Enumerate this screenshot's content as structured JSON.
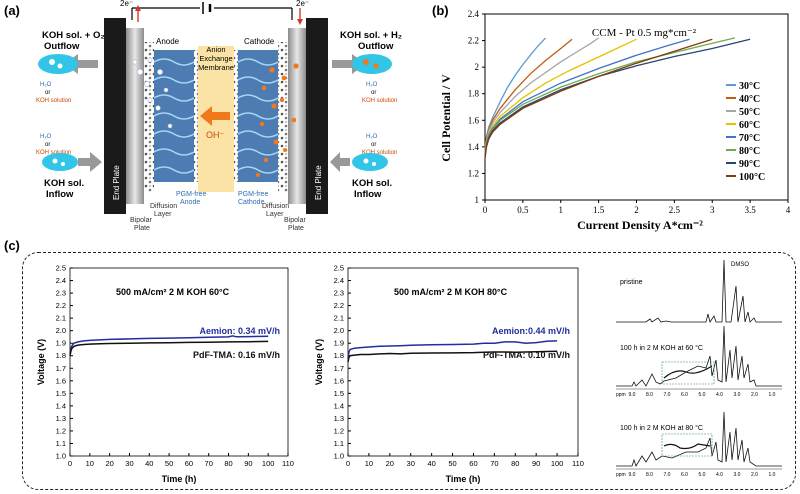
{
  "panel_a": {
    "label": "(a)",
    "electron_left": "2e⁻",
    "electron_right": "2e⁻",
    "left_outflow_title": "KOH sol. + O₂",
    "left_outflow_sub": "Outflow",
    "right_outflow_title": "KOH sol. + H₂",
    "right_outflow_sub": "Outflow",
    "water_label": "H₂O",
    "or_label": "or",
    "koh_solution_label": "KOH solution",
    "left_inflow_title": "KOH sol.",
    "left_inflow_sub": "Inflow",
    "right_inflow_title": "KOH sol.",
    "right_inflow_sub": "Inflow",
    "anode_label": "Anode",
    "cathode_label": "Cathode",
    "membrane_line1": "Anion",
    "membrane_line2": "Exchange",
    "membrane_line3": "Membrane",
    "hydroxide_label": "OH⁻",
    "end_plate": "End Plate",
    "bipolar_plate": [
      "Bipolar",
      "Plate"
    ],
    "diffusion_layer": [
      "Diffusion",
      "Layer"
    ],
    "pgm_anode": [
      "PGM-free",
      "Anode"
    ],
    "pgm_cathode": [
      "PGM-free",
      "Cathode"
    ],
    "colors": {
      "cyan": "#31c6e8",
      "orange": "#f07a1a",
      "membrane": "#fbe3a6",
      "electrode": "#4d7cb3"
    }
  },
  "panel_b": {
    "label": "(b)",
    "chart_data": {
      "type": "line",
      "title": "CCM - Pt 0.5 mg*cm⁻²",
      "xlabel": "Current Density A*cm⁻²",
      "ylabel": "Cell Potential / V",
      "xlim": [
        0,
        4
      ],
      "ylim": [
        1,
        2.4
      ],
      "xticks": [
        "0",
        "0.5",
        "1",
        "1.5",
        "2",
        "2.5",
        "3",
        "3.5",
        "4"
      ],
      "yticks": [
        "1",
        "1.2",
        "1.4",
        "1.6",
        "1.8",
        "2",
        "2.2",
        "2.4"
      ],
      "legend_position": "right",
      "series": [
        {
          "name": "30°C",
          "color": "#5b9bd5",
          "x": [
            0,
            0.02,
            0.05,
            0.1,
            0.2,
            0.3,
            0.4,
            0.5,
            0.6,
            0.7,
            0.8
          ],
          "y": [
            1.38,
            1.48,
            1.55,
            1.62,
            1.74,
            1.85,
            1.94,
            2.02,
            2.09,
            2.16,
            2.22
          ]
        },
        {
          "name": "40°C",
          "color": "#c55a11",
          "x": [
            0,
            0.02,
            0.05,
            0.1,
            0.2,
            0.4,
            0.6,
            0.8,
            1.0,
            1.15
          ],
          "y": [
            1.37,
            1.47,
            1.53,
            1.6,
            1.69,
            1.83,
            1.95,
            2.05,
            2.14,
            2.21
          ]
        },
        {
          "name": "50°C",
          "color": "#a5a5a5",
          "x": [
            0,
            0.02,
            0.05,
            0.1,
            0.2,
            0.4,
            0.6,
            0.8,
            1.0,
            1.2,
            1.4,
            1.5
          ],
          "y": [
            1.36,
            1.45,
            1.52,
            1.58,
            1.66,
            1.78,
            1.88,
            1.96,
            2.04,
            2.11,
            2.18,
            2.22
          ]
        },
        {
          "name": "60°C",
          "color": "#e7c000",
          "x": [
            0,
            0.02,
            0.05,
            0.1,
            0.2,
            0.5,
            0.8,
            1.1,
            1.4,
            1.7,
            2.0
          ],
          "y": [
            1.35,
            1.44,
            1.5,
            1.56,
            1.63,
            1.77,
            1.88,
            1.97,
            2.05,
            2.13,
            2.21
          ]
        },
        {
          "name": "70°C",
          "color": "#4472c4",
          "x": [
            0,
            0.02,
            0.05,
            0.1,
            0.2,
            0.5,
            1.0,
            1.5,
            2.0,
            2.4,
            2.7
          ],
          "y": [
            1.34,
            1.43,
            1.49,
            1.54,
            1.61,
            1.74,
            1.88,
            1.99,
            2.09,
            2.16,
            2.21
          ]
        },
        {
          "name": "80°C",
          "color": "#70ad47",
          "x": [
            0,
            0.02,
            0.05,
            0.1,
            0.2,
            0.5,
            1.0,
            1.5,
            2.0,
            2.5,
            3.0,
            3.3
          ],
          "y": [
            1.33,
            1.42,
            1.48,
            1.53,
            1.6,
            1.72,
            1.85,
            1.95,
            2.04,
            2.11,
            2.18,
            2.22
          ]
        },
        {
          "name": "90°C",
          "color": "#264478",
          "x": [
            0,
            0.02,
            0.05,
            0.1,
            0.2,
            0.5,
            1.0,
            1.5,
            2.0,
            2.5,
            3.0,
            3.5
          ],
          "y": [
            1.32,
            1.41,
            1.47,
            1.52,
            1.58,
            1.7,
            1.83,
            1.93,
            2.01,
            2.08,
            2.14,
            2.21
          ]
        },
        {
          "name": "100°C",
          "color": "#843c0c",
          "x": [
            0,
            0.02,
            0.05,
            0.1,
            0.2,
            0.5,
            1.0,
            1.5,
            2.0,
            2.5,
            3.0
          ],
          "y": [
            1.31,
            1.4,
            1.46,
            1.51,
            1.57,
            1.69,
            1.82,
            1.93,
            2.03,
            2.12,
            2.21
          ]
        }
      ]
    }
  },
  "panel_c": {
    "label": "(c)",
    "chart_data": [
      {
        "type": "line",
        "annotation": "500 mA/cm² 2 M KOH 60°C",
        "xlabel": "Time (h)",
        "ylabel": "Voltage (V)",
        "xlim": [
          0,
          110
        ],
        "ylim": [
          1.0,
          2.5
        ],
        "xticks": [
          "0",
          "10",
          "20",
          "30",
          "40",
          "50",
          "60",
          "70",
          "80",
          "90",
          "100",
          "110"
        ],
        "yticks": [
          "1.0",
          "1.1",
          "1.2",
          "1.3",
          "1.4",
          "1.5",
          "1.6",
          "1.7",
          "1.8",
          "1.9",
          "2.0",
          "2.1",
          "2.2",
          "2.3",
          "2.4",
          "2.5"
        ],
        "series": [
          {
            "name": "Aemion",
            "label": "Aemion: 0.34 mV/h",
            "color": "#1f2f9c",
            "x": [
              0,
              0.5,
              1,
              2,
              4,
              7,
              10,
              15,
              20,
              30,
              40,
              50,
              60,
              70,
              80,
              82,
              84,
              90,
              100
            ],
            "y": [
              1.82,
              1.86,
              1.88,
              1.9,
              1.91,
              1.918,
              1.922,
              1.926,
              1.93,
              1.934,
              1.938,
              1.941,
              1.944,
              1.947,
              1.95,
              1.958,
              1.951,
              1.953,
              1.956
            ]
          },
          {
            "name": "PdF-TMA",
            "label": "PdF-TMA: 0.16 mV/h",
            "color": "#111111",
            "x": [
              0,
              0.5,
              1,
              2,
              4,
              7,
              10,
              15,
              20,
              30,
              40,
              50,
              60,
              70,
              80,
              90,
              100
            ],
            "y": [
              1.8,
              1.84,
              1.86,
              1.875,
              1.885,
              1.89,
              1.893,
              1.896,
              1.898,
              1.9,
              1.902,
              1.904,
              1.906,
              1.908,
              1.91,
              1.912,
              1.914
            ]
          }
        ]
      },
      {
        "type": "line",
        "annotation": "500 mA/cm² 2 M KOH 80°C",
        "xlabel": "Time (h)",
        "ylabel": "Voltage (V)",
        "xlim": [
          0,
          110
        ],
        "ylim": [
          1.0,
          2.5
        ],
        "xticks": [
          "0",
          "10",
          "20",
          "30",
          "40",
          "50",
          "60",
          "70",
          "80",
          "90",
          "100",
          "110"
        ],
        "yticks": [
          "1.0",
          "1.1",
          "1.2",
          "1.3",
          "1.4",
          "1.5",
          "1.6",
          "1.7",
          "1.8",
          "1.9",
          "2.0",
          "2.1",
          "2.2",
          "2.3",
          "2.4",
          "2.5"
        ],
        "series": [
          {
            "name": "Aemion",
            "label": "Aemion:0.44 mV/h",
            "color": "#1f2f9c",
            "x": [
              0,
              0.5,
              1,
              3,
              6,
              10,
              15,
              20,
              25,
              30,
              40,
              50,
              60,
              65,
              70,
              75,
              80,
              85,
              90,
              95,
              100
            ],
            "y": [
              1.78,
              1.83,
              1.85,
              1.86,
              1.865,
              1.87,
              1.875,
              1.878,
              1.88,
              1.883,
              1.887,
              1.89,
              1.893,
              1.9,
              1.9,
              1.91,
              1.91,
              1.9,
              1.905,
              1.915,
              1.918
            ]
          },
          {
            "name": "PdF-TMA",
            "label": "PdF-TMA: 0.10 mV/h",
            "color": "#111111",
            "x": [
              0,
              0.5,
              1,
              3,
              6,
              10,
              15,
              20,
              25,
              30,
              40,
              50,
              60,
              65,
              70,
              75,
              80,
              85,
              90,
              95,
              100
            ],
            "y": [
              1.75,
              1.79,
              1.8,
              1.805,
              1.81,
              1.81,
              1.815,
              1.818,
              1.815,
              1.82,
              1.822,
              1.823,
              1.825,
              1.828,
              1.83,
              1.83,
              1.828,
              1.83,
              1.832,
              1.834,
              1.835
            ]
          }
        ]
      }
    ],
    "nmr": {
      "spectra_labels": [
        "pristine",
        "100 h in 2 M KOH at 60 °C",
        "100 h in 2 M KOH at 80 °C"
      ],
      "dmso_label": "DMSO",
      "ppm_label": "ppm",
      "ppm_ticks": [
        "9.0",
        "8.0",
        "7.0",
        "6.0",
        "5.0",
        "4.0",
        "3.0",
        "2.0",
        "1.0"
      ]
    }
  }
}
